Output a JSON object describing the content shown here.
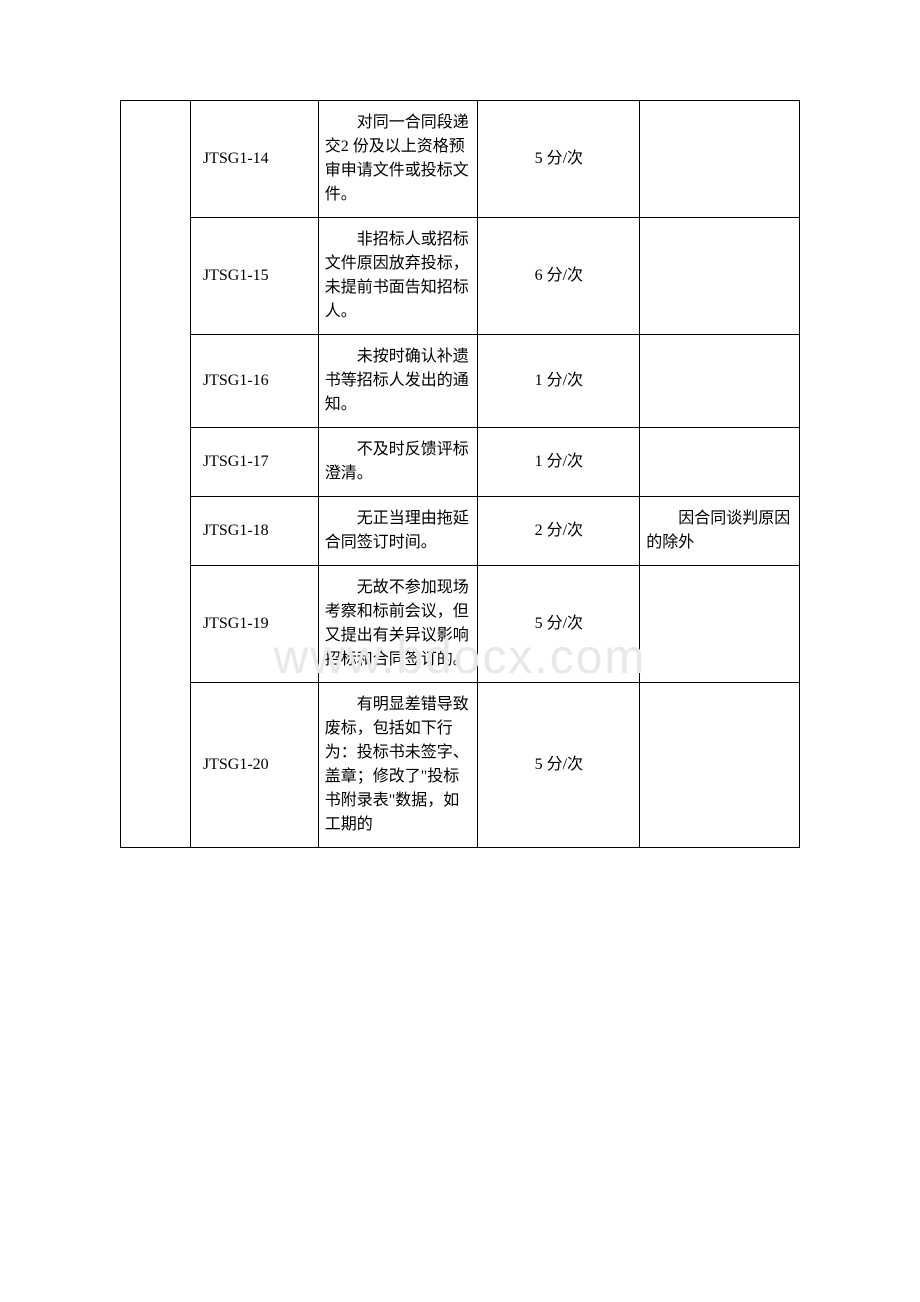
{
  "watermark": "www.bdocx.com",
  "table": {
    "rows": [
      {
        "code": "JTSG1-14",
        "description": "对同一合同段递交2 份及以上资格预审申请文件或投标文件。",
        "penalty": "5 分/次",
        "note": ""
      },
      {
        "code": "JTSG1-15",
        "description": "非招标人或招标文件原因放弃投标，未提前书面告知招标人。",
        "penalty": "6 分/次",
        "note": ""
      },
      {
        "code": "JTSG1-16",
        "description": "未按时确认补遗书等招标人发出的通知。",
        "penalty": "1 分/次",
        "note": ""
      },
      {
        "code": "JTSG1-17",
        "description": "不及时反馈评标澄清。",
        "penalty": "1 分/次",
        "note": ""
      },
      {
        "code": "JTSG1-18",
        "description": "无正当理由拖延合同签订时间。",
        "penalty": "2 分/次",
        "note": "因合同谈判原因的除外"
      },
      {
        "code": "JTSG1-19",
        "description": "无故不参加现场考察和标前会议，但又提出有关异议影响招标和合同签订的。",
        "penalty": "5 分/次",
        "note": ""
      },
      {
        "code": "JTSG1-20",
        "description": "有明显差错导致废标，包括如下行为：投标书未签字、盖章；修改了\"投标书附录表\"数据，如工期的",
        "penalty": "5 分/次",
        "note": ""
      }
    ]
  }
}
